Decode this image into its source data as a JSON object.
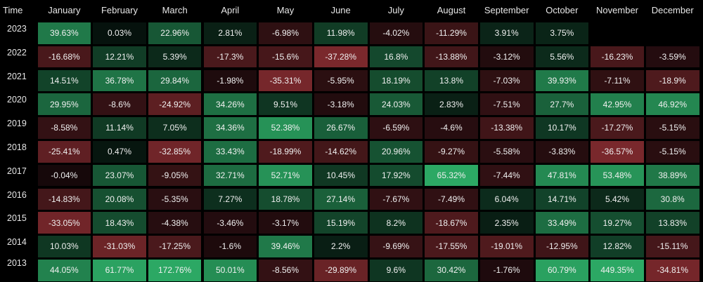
{
  "chart_data": {
    "type": "heatmap",
    "corner_label": "Time",
    "months": [
      "January",
      "February",
      "March",
      "April",
      "May",
      "June",
      "July",
      "August",
      "September",
      "October",
      "November",
      "December"
    ],
    "rows": [
      {
        "year": "2023",
        "values": [
          "39.63%",
          "0.03%",
          "22.96%",
          "2.81%",
          "-6.98%",
          "11.98%",
          "-4.02%",
          "-11.29%",
          "3.91%",
          "3.75%",
          "",
          ""
        ]
      },
      {
        "year": "2022",
        "values": [
          "-16.68%",
          "12.21%",
          "5.39%",
          "-17.3%",
          "-15.6%",
          "-37.28%",
          "16.8%",
          "-13.88%",
          "-3.12%",
          "5.56%",
          "-16.23%",
          "-3.59%"
        ]
      },
      {
        "year": "2021",
        "values": [
          "14.51%",
          "36.78%",
          "29.84%",
          "-1.98%",
          "-35.31%",
          "-5.95%",
          "18.19%",
          "13.8%",
          "-7.03%",
          "39.93%",
          "-7.11%",
          "-18.9%"
        ]
      },
      {
        "year": "2020",
        "values": [
          "29.95%",
          "-8.6%",
          "-24.92%",
          "34.26%",
          "9.51%",
          "-3.18%",
          "24.03%",
          "2.83%",
          "-7.51%",
          "27.7%",
          "42.95%",
          "46.92%"
        ]
      },
      {
        "year": "2019",
        "values": [
          "-8.58%",
          "11.14%",
          "7.05%",
          "34.36%",
          "52.38%",
          "26.67%",
          "-6.59%",
          "-4.6%",
          "-13.38%",
          "10.17%",
          "-17.27%",
          "-5.15%"
        ]
      },
      {
        "year": "2018",
        "values": [
          "-25.41%",
          "0.47%",
          "-32.85%",
          "33.43%",
          "-18.99%",
          "-14.62%",
          "20.96%",
          "-9.27%",
          "-5.58%",
          "-3.83%",
          "-36.57%",
          "-5.15%"
        ]
      },
      {
        "year": "2017",
        "values": [
          "-0.04%",
          "23.07%",
          "-9.05%",
          "32.71%",
          "52.71%",
          "10.45%",
          "17.92%",
          "65.32%",
          "-7.44%",
          "47.81%",
          "53.48%",
          "38.89%"
        ]
      },
      {
        "year": "2016",
        "values": [
          "-14.83%",
          "20.08%",
          "-5.35%",
          "7.27%",
          "18.78%",
          "27.14%",
          "-7.67%",
          "-7.49%",
          "6.04%",
          "14.71%",
          "5.42%",
          "30.8%"
        ]
      },
      {
        "year": "2015",
        "values": [
          "-33.05%",
          "18.43%",
          "-4.38%",
          "-3.46%",
          "-3.17%",
          "15.19%",
          "8.2%",
          "-18.67%",
          "2.35%",
          "33.49%",
          "19.27%",
          "13.83%"
        ]
      },
      {
        "year": "2014",
        "values": [
          "10.03%",
          "-31.03%",
          "-17.25%",
          "-1.6%",
          "39.46%",
          "2.2%",
          "-9.69%",
          "-17.55%",
          "-19.01%",
          "-12.95%",
          "12.82%",
          "-15.11%"
        ]
      },
      {
        "year": "2013",
        "values": [
          "44.05%",
          "61.77%",
          "172.76%",
          "50.01%",
          "-8.56%",
          "-29.89%",
          "9.6%",
          "30.42%",
          "-1.76%",
          "60.79%",
          "449.35%",
          "-34.81%"
        ]
      }
    ]
  },
  "colors": {
    "background": "#000000",
    "positive": "#2ecc71",
    "negative": "#c0392b"
  }
}
